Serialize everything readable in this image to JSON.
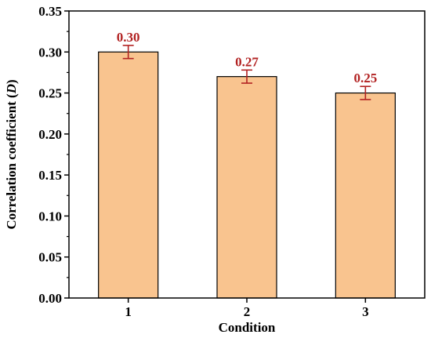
{
  "chart_data": {
    "type": "bar",
    "title": "",
    "xlabel": "Condition",
    "ylabel": {
      "prefix": "Correlation coefficient (",
      "italic": "D",
      "suffix": ")"
    },
    "categories": [
      "1",
      "2",
      "3"
    ],
    "values": [
      0.3,
      0.27,
      0.25
    ],
    "error": [
      0.008,
      0.008,
      0.008
    ],
    "data_labels": [
      "0.30",
      "0.27",
      "0.25"
    ],
    "ylim": [
      0,
      0.35
    ],
    "yticks": [
      0.0,
      0.05,
      0.1,
      0.15,
      0.2,
      0.25,
      0.3,
      0.35
    ],
    "ytick_labels": [
      "0.00",
      "0.05",
      "0.10",
      "0.15",
      "0.20",
      "0.25",
      "0.30",
      "0.35"
    ],
    "grid": false,
    "legend": "none",
    "colors": {
      "bar_fill": "#F9C48F",
      "bar_stroke": "#000000",
      "error_bar": "#B22222",
      "data_label": "#B22222",
      "axis": "#000000"
    }
  }
}
